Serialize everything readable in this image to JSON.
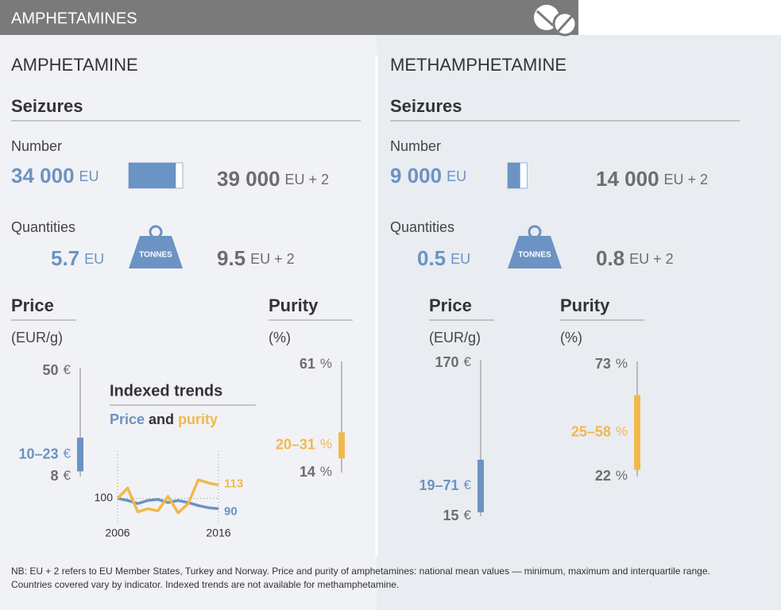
{
  "header": {
    "title": "AMPHETAMINES"
  },
  "panels": [
    {
      "title": "AMPHETAMINE",
      "seizures_title": "Seizures",
      "number_label": "Number",
      "number": {
        "eu": 34000,
        "eu_label": "34 000",
        "eu_suffix": "EU",
        "eu2": 39000,
        "eu2_label": "39 000",
        "eu2_suffix": "EU + 2"
      },
      "quantities_label": "Quantities",
      "quantities": {
        "eu": 5.7,
        "eu_suffix": "EU",
        "eu2": 9.5,
        "eu2_suffix": "EU + 2",
        "icon_label": "TONNES"
      },
      "price": {
        "title": "Price",
        "unit_label": "(EUR/g)",
        "unit": "€",
        "max": 50,
        "min": 8,
        "iqr_low": 10,
        "iqr_high": 23,
        "iqr_label": "10–23"
      },
      "purity": {
        "title": "Purity",
        "unit_label": "(%)",
        "unit": "%",
        "max": 61,
        "min": 14,
        "iqr_low": 20,
        "iqr_high": 31,
        "iqr_label": "20–31"
      }
    },
    {
      "title": "METHAMPHETAMINE",
      "seizures_title": "Seizures",
      "number_label": "Number",
      "number": {
        "eu": 9000,
        "eu_label": "9 000",
        "eu_suffix": "EU",
        "eu2": 14000,
        "eu2_label": "14 000",
        "eu2_suffix": "EU + 2"
      },
      "quantities_label": "Quantities",
      "quantities": {
        "eu": 0.5,
        "eu_suffix": "EU",
        "eu2": 0.8,
        "eu2_suffix": "EU + 2",
        "icon_label": "TONNES"
      },
      "price": {
        "title": "Price",
        "unit_label": "(EUR/g)",
        "unit": "€",
        "max": 170,
        "min": 15,
        "iqr_low": 19,
        "iqr_high": 71,
        "iqr_label": "19–71"
      },
      "purity": {
        "title": "Purity",
        "unit_label": "(%)",
        "unit": "%",
        "max": 73,
        "min": 22,
        "iqr_low": 25,
        "iqr_high": 58,
        "iqr_label": "25–58"
      }
    }
  ],
  "chart_data": {
    "type": "line",
    "title": "Indexed trends",
    "legend_joiner": "and",
    "x": [
      2006,
      2007,
      2008,
      2009,
      2010,
      2011,
      2012,
      2013,
      2014,
      2015,
      2016
    ],
    "series": [
      {
        "name": "Price",
        "color": "#6b93c3",
        "values": [
          100,
          98,
          95,
          98,
          99,
          96,
          98,
          96,
          93,
          91,
          90
        ]
      },
      {
        "name": "purity",
        "color": "#f2b84b",
        "values": [
          100,
          110,
          87,
          90,
          88,
          102,
          86,
          95,
          118,
          115,
          113
        ]
      }
    ],
    "xlim": [
      2006,
      2016
    ],
    "xticks": [
      2006,
      2016
    ],
    "ylim": [
      75,
      125
    ],
    "yticks": [
      100
    ]
  },
  "footnote": [
    "NB: EU + 2 refers to EU Member States, Turkey and Norway. Price and purity of amphetamines: national mean values — minimum, maximum and interquartile range.",
    "Countries covered vary by indicator. Indexed trends are not available for methamphetamine."
  ]
}
